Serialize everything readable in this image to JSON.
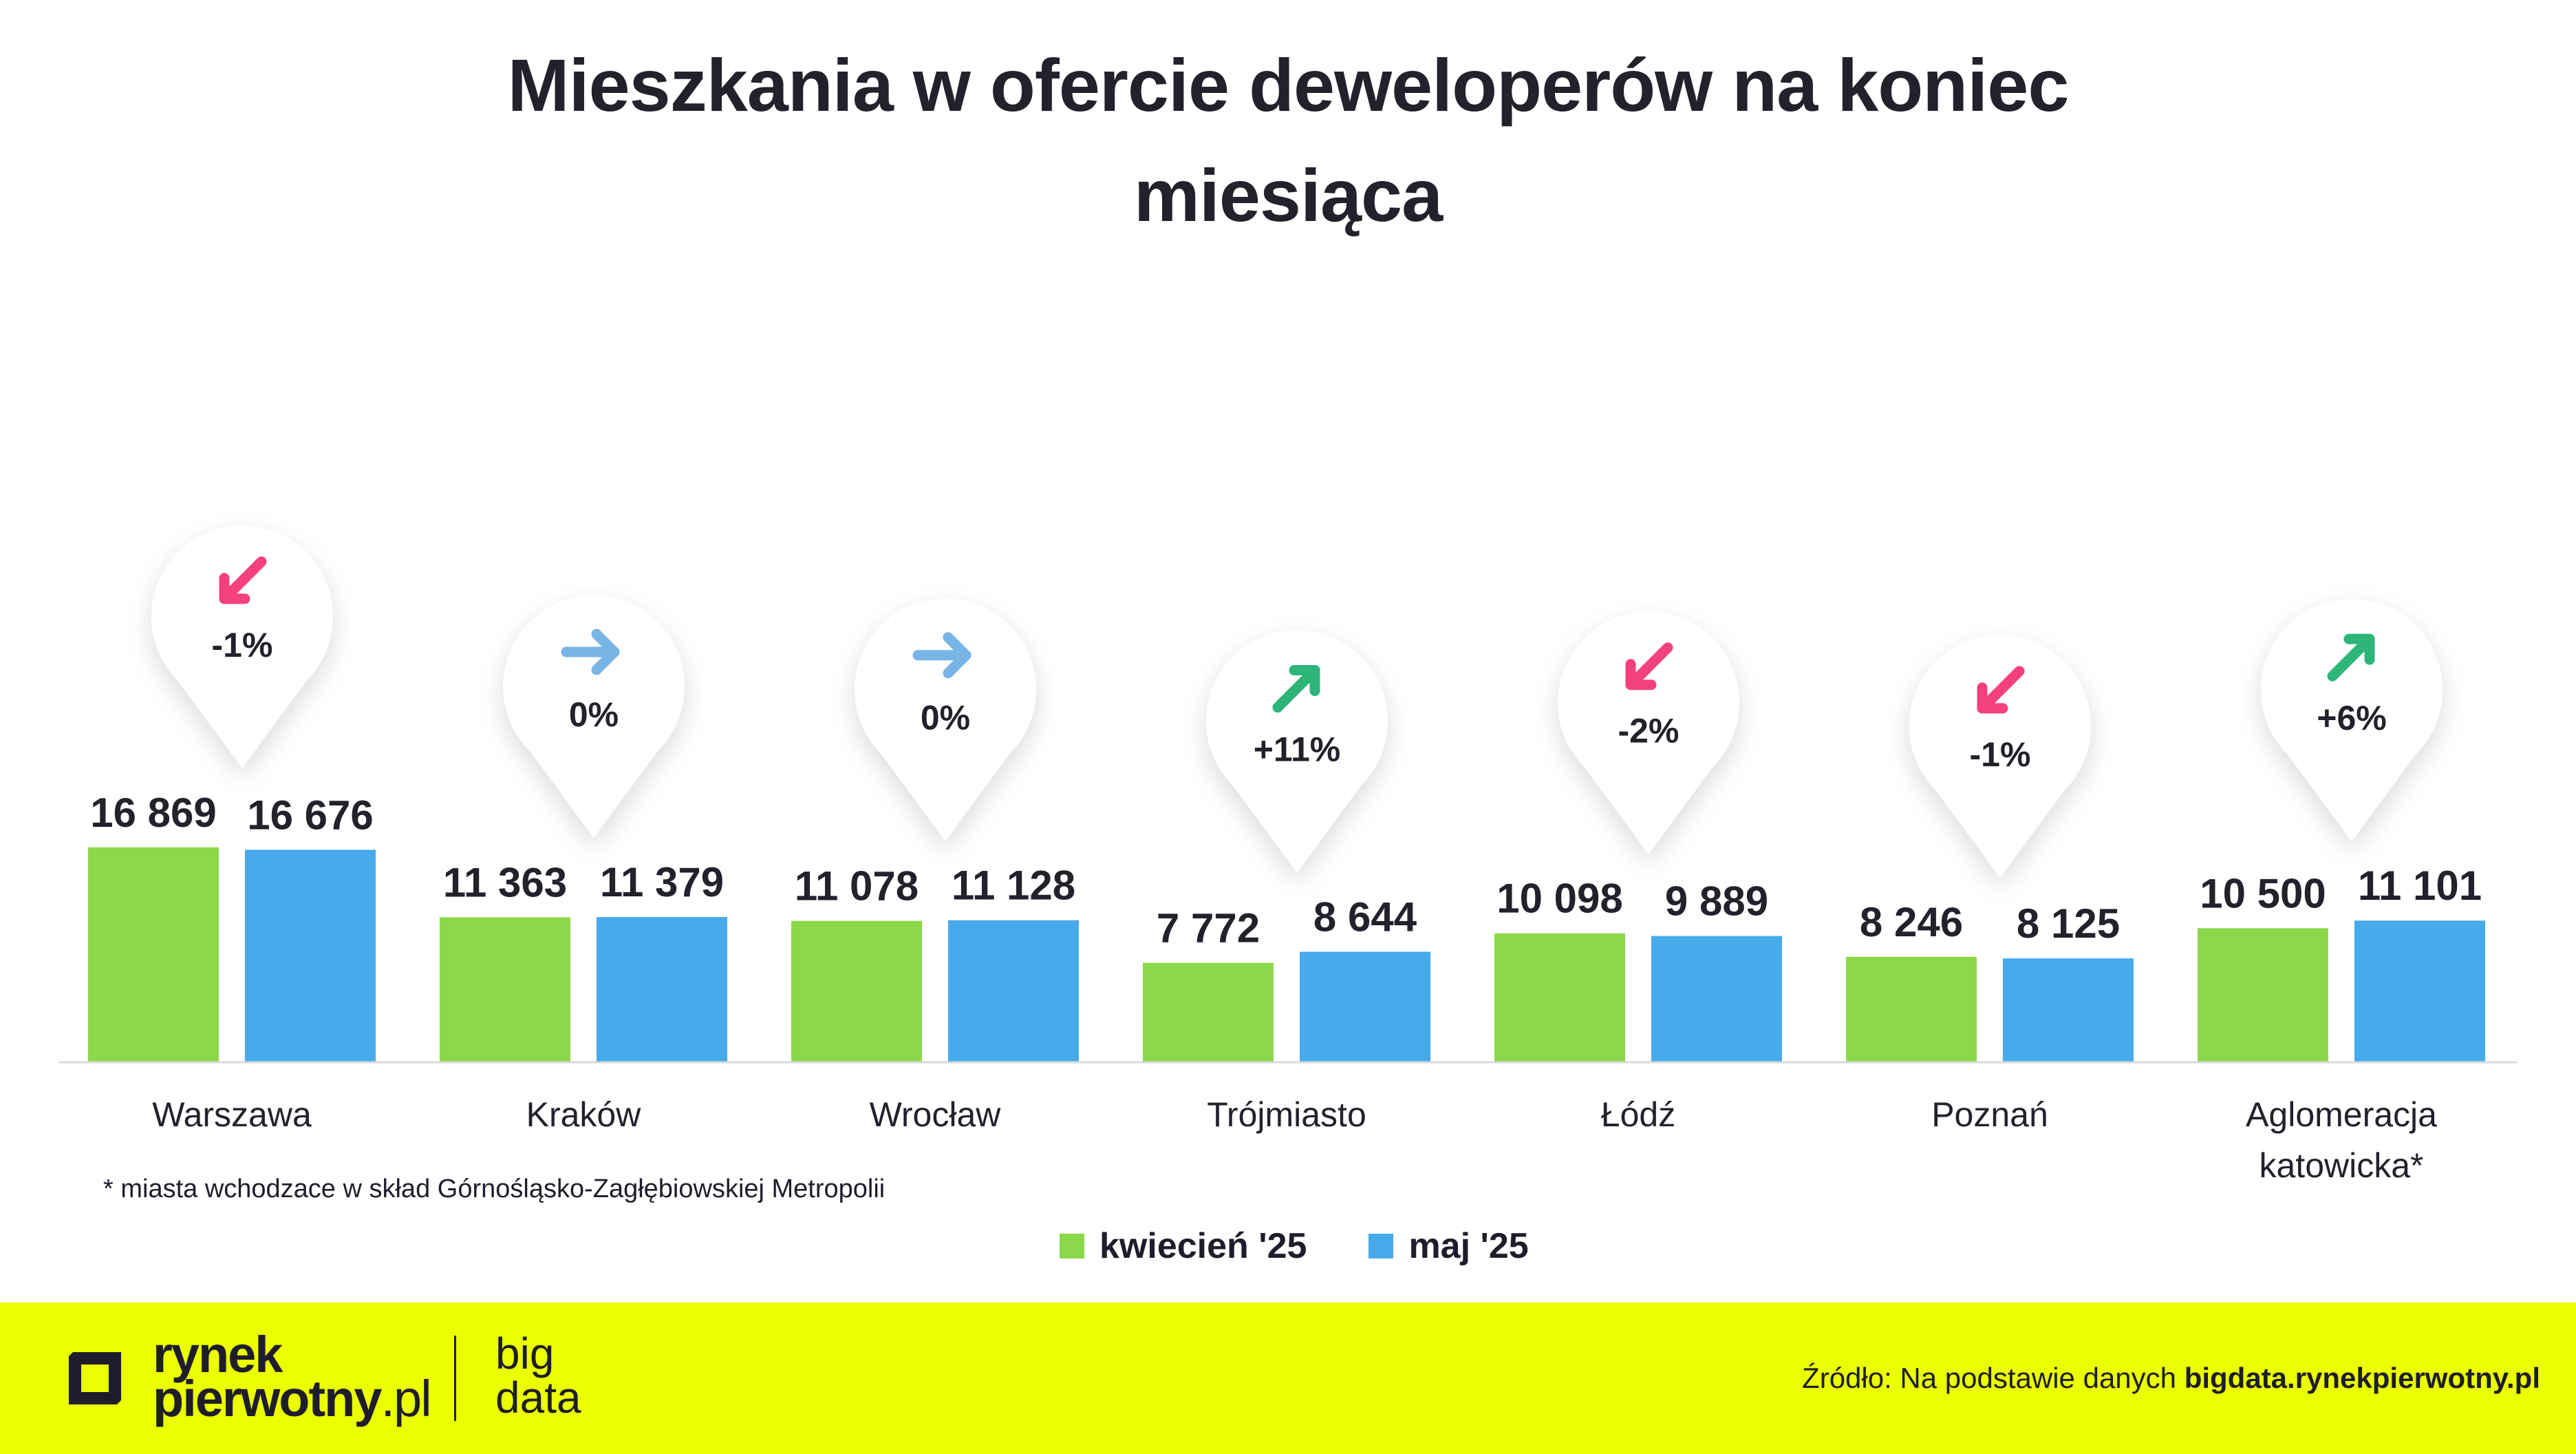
{
  "title_line1": "Mieszkania w ofercie deweloperów na koniec",
  "title_line2": "miesiąca",
  "chart_data": {
    "type": "bar",
    "categories": [
      "Warszawa",
      "Kraków",
      "Wrocław",
      "Trójmiasto",
      "Łódź",
      "Poznań",
      "Aglomeracja katowicka*"
    ],
    "category_lines": [
      [
        "Warszawa"
      ],
      [
        "Kraków"
      ],
      [
        "Wrocław"
      ],
      [
        "Trójmiasto"
      ],
      [
        "Łódź"
      ],
      [
        "Poznań"
      ],
      [
        "Aglomeracja",
        "katowicka*"
      ]
    ],
    "series": [
      {
        "name": "kwiecień '25",
        "color": "#8bd84a",
        "values": [
          16869,
          11363,
          11078,
          7772,
          10098,
          8246,
          10500
        ],
        "labels": [
          "16 869",
          "11 363",
          "11 078",
          "7 772",
          "10 098",
          "8 246",
          "10 500"
        ]
      },
      {
        "name": "maj '25",
        "color": "#47aaeb",
        "values": [
          16676,
          11379,
          11128,
          8644,
          9889,
          8125,
          11101
        ],
        "labels": [
          "16 676",
          "11 379",
          "11 128",
          "8 644",
          "9 889",
          "8 125",
          "11 101"
        ]
      }
    ],
    "changes": [
      {
        "label": "-1%",
        "direction": "down",
        "color": "#f5407f"
      },
      {
        "label": "0%",
        "direction": "flat",
        "color": "#79b4e6"
      },
      {
        "label": "0%",
        "direction": "flat",
        "color": "#79b4e6"
      },
      {
        "label": "+11%",
        "direction": "up",
        "color": "#2db57a"
      },
      {
        "label": "-2%",
        "direction": "down",
        "color": "#f5407f"
      },
      {
        "label": "-1%",
        "direction": "down",
        "color": "#f5407f"
      },
      {
        "label": "+6%",
        "direction": "up",
        "color": "#2db57a"
      }
    ],
    "ylim": [
      0,
      17000
    ],
    "grid": false,
    "legend_position": "bottom-center"
  },
  "footnote": "* miasta wchodzace w skład Górnośląsko-Zagłębiowskiej Metropolii",
  "legend": [
    {
      "label": "kwiecień '25",
      "color": "#8bd84a"
    },
    {
      "label": "maj '25",
      "color": "#47aaeb"
    }
  ],
  "footer": {
    "logo_line1": "rynek",
    "logo_line2": "pierwotny",
    "logo_suffix": ".pl",
    "logo_sub_line1": "big",
    "logo_sub_line2": "data",
    "source_prefix": "Źródło: Na podstawie danych ",
    "source_link": "bigdata.rynekpierwotny.pl",
    "background_color": "#eaff00"
  }
}
